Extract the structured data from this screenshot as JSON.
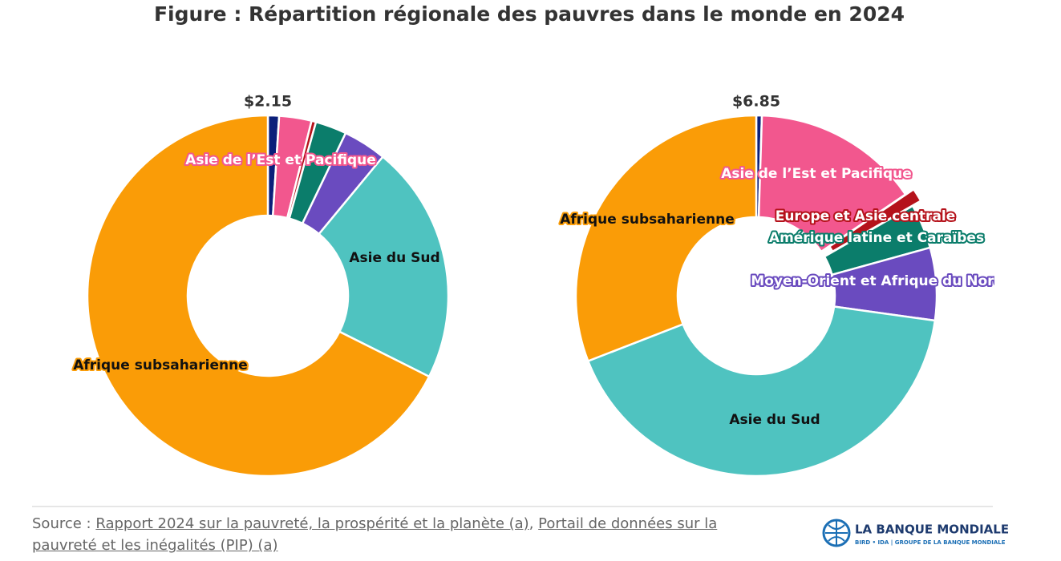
{
  "title": "Figure : Répartition régionale des pauvres dans le monde en 2024",
  "chart_data": [
    {
      "type": "pie",
      "title": "$2.15",
      "categories": [
        null,
        "Asie de l’Est et Pacifique",
        null,
        null,
        null,
        "Asie du Sud",
        "Afrique subsaharienne"
      ],
      "values": [
        1.0,
        2.9,
        0.4,
        2.8,
        3.9,
        21.4,
        67.6
      ],
      "colors": [
        "#0b1f7a",
        "#f2578e",
        "#b5121b",
        "#0b7d6b",
        "#6a4bbf",
        "#4fc3c0",
        "#fa9c07"
      ]
    },
    {
      "type": "pie",
      "title": "$6.85",
      "categories": [
        null,
        "Asie de l’Est et Pacifique",
        "Europe et Asie centrale",
        "Amérique latine et Caraïbes",
        "Moyen-Orient et Afrique du Nord",
        "Asie du Sud",
        "Afrique subsaharienne"
      ],
      "values": [
        0.5,
        15.0,
        1.2,
        4.0,
        6.5,
        41.9,
        30.9
      ],
      "colors": [
        "#0b1f7a",
        "#f2578e",
        "#b5121b",
        "#0b7d6b",
        "#6a4bbf",
        "#4fc3c0",
        "#fa9c07"
      ]
    }
  ],
  "source": {
    "prefix": "Source :",
    "link1": "Rapport 2024 sur la pauvreté, la prospérité et la planète (a)",
    "sep": ",",
    "link2": "Portail de données sur la pauvreté et les inégalités (PIP) (a)"
  },
  "logo": {
    "name": "LA BANQUE MONDIALE",
    "tagline": "BIRD • IDA | GROUPE DE LA BANQUE MONDIALE"
  }
}
